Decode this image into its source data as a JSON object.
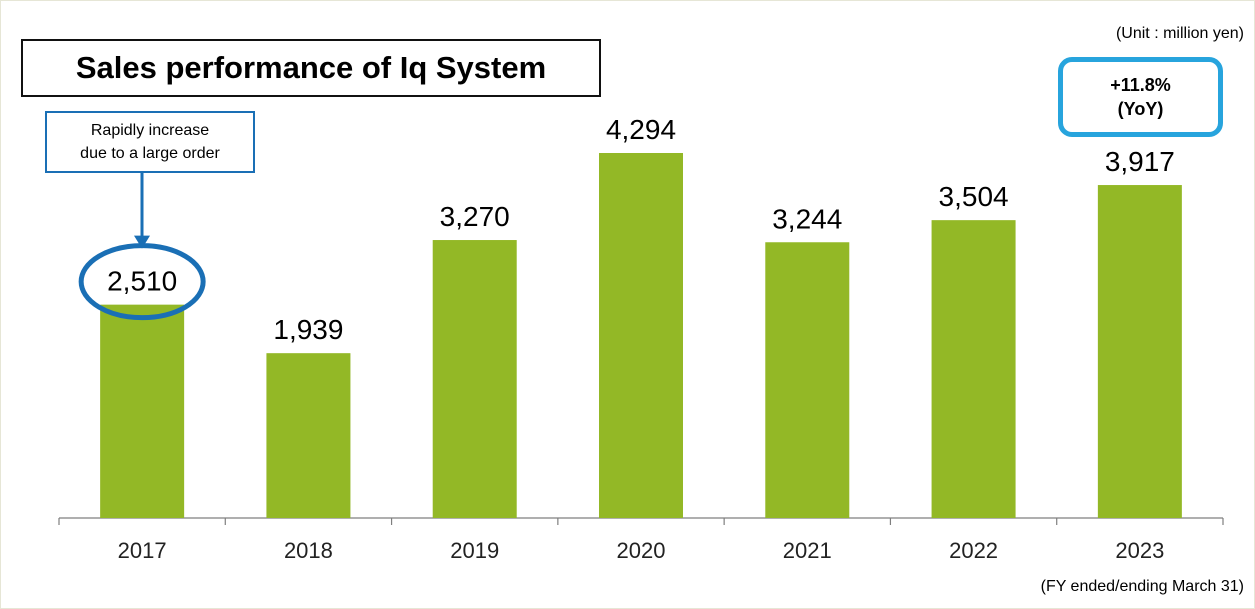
{
  "title": "Sales performance of Iq System",
  "unit_note": "(Unit : million yen)",
  "source_note": "(FY ended/ending March 31)",
  "callout": {
    "text": "Rapidly increase\ndue to a large order",
    "target_category": "2017"
  },
  "yoy_badge": {
    "text": "+11.8%\n(YoY)",
    "target_category": "2023"
  },
  "colors": {
    "bar": "#93b826",
    "accent_blue": "#1a6fb5",
    "badge_border": "#27a4dd",
    "axis": "#7f7f7f",
    "text": "#000000"
  },
  "chart_data": {
    "type": "bar",
    "categories": [
      "2017",
      "2018",
      "2019",
      "2020",
      "2021",
      "2022",
      "2023"
    ],
    "values": [
      2510,
      1939,
      3270,
      4294,
      3244,
      3504,
      3917
    ],
    "value_labels": [
      "2,510",
      "1,939",
      "3,270",
      "4,294",
      "3,244",
      "3,504",
      "3,917"
    ],
    "title": "Sales performance of Iq System",
    "xlabel": "",
    "ylabel": "",
    "ylim": [
      0,
      4294
    ],
    "grid": false,
    "legend": "none"
  }
}
